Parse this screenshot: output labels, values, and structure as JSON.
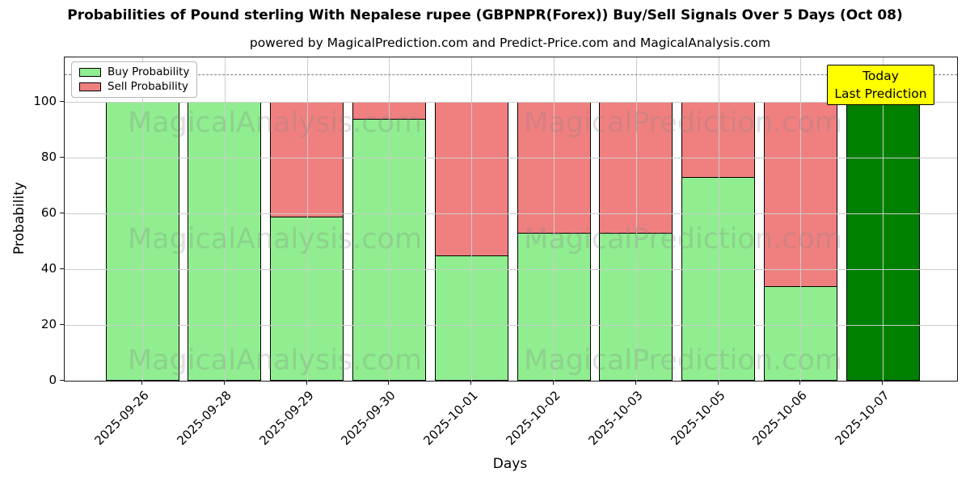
{
  "chart_data": {
    "type": "bar",
    "stacked": true,
    "title": "Probabilities of Pound sterling With Nepalese rupee (GBPNPR(Forex)) Buy/Sell Signals Over 5 Days (Oct 08)",
    "subtitle": "powered by MagicalPrediction.com and Predict-Price.com and MagicalAnalysis.com",
    "xlabel": "Days",
    "ylabel": "Probability",
    "categories": [
      "2025-09-26",
      "2025-09-28",
      "2025-09-29",
      "2025-09-30",
      "2025-10-01",
      "2025-10-02",
      "2025-10-03",
      "2025-10-05",
      "2025-10-06",
      "2025-10-07"
    ],
    "series": [
      {
        "name": "Buy Probability",
        "color": "#90EE90",
        "values": [
          100,
          100,
          59,
          94,
          45,
          53,
          53,
          73,
          34,
          100
        ]
      },
      {
        "name": "Sell Probability",
        "color": "#F08080",
        "values": [
          0,
          0,
          41,
          6,
          55,
          47,
          47,
          27,
          66,
          0
        ]
      }
    ],
    "today_bar": {
      "category": "2025-10-07",
      "index": 9,
      "color": "#008000"
    },
    "ylim": [
      0,
      116
    ],
    "yticks": [
      0,
      20,
      40,
      60,
      80,
      100
    ],
    "grid": true,
    "grid_color": "#cccccc",
    "dashed_line_y": 110,
    "dashed_line_color": "#7a7a7a",
    "legend": {
      "position": "upper-left",
      "items": [
        {
          "label": "Buy Probability",
          "color": "#90EE90"
        },
        {
          "label": "Sell Probability",
          "color": "#F08080"
        }
      ]
    },
    "annotation": {
      "line1": "Today",
      "line2": "Last Prediction",
      "bg_color": "#FFFF00",
      "border_color": "#000000"
    },
    "watermarks": {
      "left_text": "MagicalAnalysis.com",
      "right_text": "MagicalPrediction.com",
      "color": "rgba(128,128,128,0.25)"
    },
    "bar_edge_color": "#000000"
  }
}
